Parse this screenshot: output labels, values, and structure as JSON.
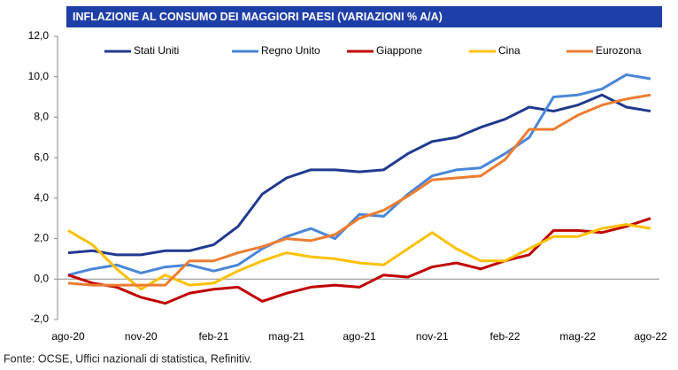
{
  "chart_data": {
    "type": "line",
    "title": "INFLAZIONE AL CONSUMO DEI MAGGIORI PAESI (VARIAZIONI % A/A)",
    "source": "Fonte: OCSE, Uffici nazionali di statistica, Refinitiv.",
    "categories": [
      "ago-20",
      null,
      null,
      "nov-20",
      null,
      null,
      "feb-21",
      null,
      null,
      "mag-21",
      null,
      null,
      "ago-21",
      null,
      null,
      "nov-21",
      null,
      null,
      "feb-22",
      null,
      null,
      "mag-22",
      null,
      null,
      "ago-22"
    ],
    "series": [
      {
        "name": "Stati Uniti",
        "color": "#203a8f",
        "values": [
          1.3,
          1.4,
          1.2,
          1.2,
          1.4,
          1.4,
          1.7,
          2.6,
          4.2,
          5.0,
          5.4,
          5.4,
          5.3,
          5.4,
          6.2,
          6.8,
          7.0,
          7.5,
          7.9,
          8.5,
          8.3,
          8.6,
          9.1,
          8.5,
          8.3
        ]
      },
      {
        "name": "Regno Unito",
        "color": "#4a86d8",
        "values": [
          0.2,
          0.5,
          0.7,
          0.3,
          0.6,
          0.7,
          0.4,
          0.7,
          1.5,
          2.1,
          2.5,
          2.0,
          3.2,
          3.1,
          4.2,
          5.1,
          5.4,
          5.5,
          6.2,
          7.0,
          9.0,
          9.1,
          9.4,
          10.1,
          9.9
        ]
      },
      {
        "name": "Giappone",
        "color": "#c00000",
        "values": [
          0.2,
          -0.2,
          -0.4,
          -0.9,
          -1.2,
          -0.7,
          -0.5,
          -0.4,
          -1.1,
          -0.7,
          -0.4,
          -0.3,
          -0.4,
          0.2,
          0.1,
          0.6,
          0.8,
          0.5,
          0.9,
          1.2,
          2.4,
          2.4,
          2.3,
          2.6,
          3.0
        ]
      },
      {
        "name": "Cina",
        "color": "#ffc000",
        "values": [
          2.4,
          1.7,
          0.5,
          -0.5,
          0.2,
          -0.3,
          -0.2,
          0.4,
          0.9,
          1.3,
          1.1,
          1.0,
          0.8,
          0.7,
          1.5,
          2.3,
          1.5,
          0.9,
          0.9,
          1.5,
          2.1,
          2.1,
          2.5,
          2.7,
          2.5
        ]
      },
      {
        "name": "Eurozona",
        "color": "#ed7d31",
        "values": [
          -0.2,
          -0.3,
          -0.3,
          -0.3,
          -0.3,
          0.9,
          0.9,
          1.3,
          1.6,
          2.0,
          1.9,
          2.2,
          3.0,
          3.4,
          4.1,
          4.9,
          5.0,
          5.1,
          5.9,
          7.4,
          7.4,
          8.1,
          8.6,
          8.9,
          9.1
        ]
      }
    ],
    "ylim": [
      -2,
      12
    ],
    "yticks": [
      {
        "value": -2,
        "label": "-2,0"
      },
      {
        "value": 0,
        "label": "0,0"
      },
      {
        "value": 2,
        "label": "2,0"
      },
      {
        "value": 4,
        "label": "4,0"
      },
      {
        "value": 6,
        "label": "6,0"
      },
      {
        "value": 8,
        "label": "8,0"
      },
      {
        "value": 10,
        "label": "10,0"
      },
      {
        "value": 12,
        "label": "12,0"
      }
    ],
    "grid": false,
    "legend": "top"
  }
}
